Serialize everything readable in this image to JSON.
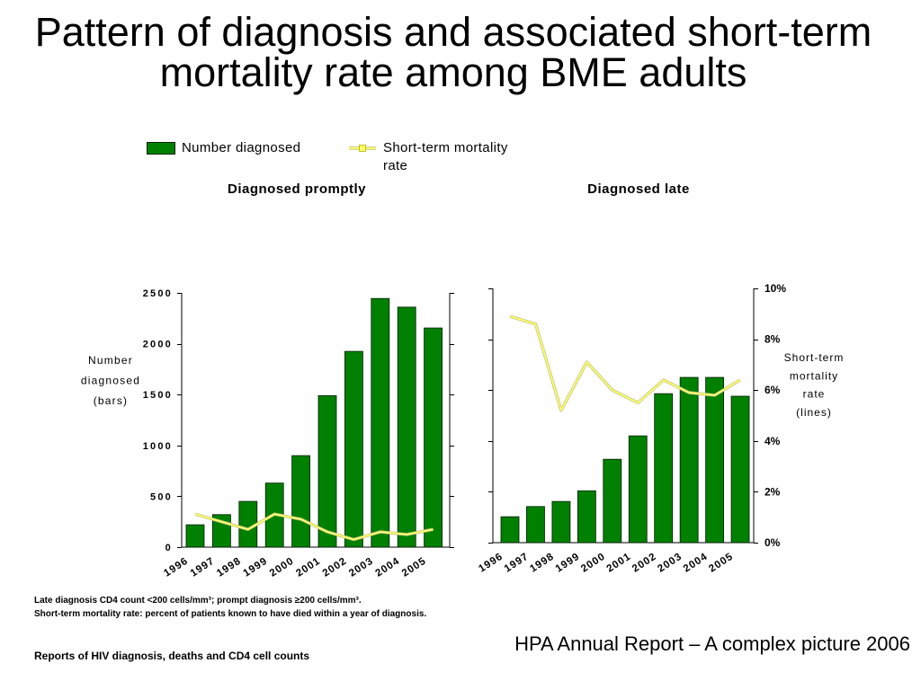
{
  "slide": {
    "title_lines": [
      "Pattern of diagnosis and associated short-term",
      "mortality rate among BME adults"
    ],
    "footnotes": [
      "Late diagnosis CD4 count <200 cells/mm³; prompt diagnosis ≥200 cells/mm³.",
      "Short-term mortality rate: percent of patients known to have died within a year of diagnosis."
    ],
    "source": "Reports of HIV diagnosis, deaths and CD4 cell counts",
    "caption": "HPA Annual Report – A complex picture 2006"
  },
  "chart_data": [
    {
      "type": "bar",
      "title": "Diagnosed promptly",
      "categories": [
        "1996",
        "1997",
        "1998",
        "1999",
        "2000",
        "2001",
        "2002",
        "2003",
        "2004",
        "2005"
      ],
      "series": [
        {
          "name": "Number diagnosed",
          "type": "bar",
          "axis": "left",
          "color": "#008000",
          "values": [
            220,
            320,
            450,
            630,
            900,
            1490,
            1925,
            2445,
            2360,
            2155
          ]
        },
        {
          "name": "Short-term mortality rate",
          "type": "line",
          "axis": "right",
          "color": "#ffff66",
          "values": [
            1.3,
            1.0,
            0.7,
            1.3,
            1.1,
            0.6,
            0.3,
            0.6,
            0.5,
            0.7
          ]
        }
      ],
      "ylabel": "Number diagnosed (bars)",
      "ylim": [
        0,
        2500
      ],
      "yticks": [
        0,
        500,
        1000,
        1500,
        2000,
        2500
      ],
      "ytick_labels": [
        "0",
        "500",
        "1000",
        "1500",
        "2000",
        "2500"
      ],
      "y2lim": [
        0,
        10
      ],
      "y2ticks": [
        0,
        2,
        4,
        6,
        8,
        10
      ],
      "grid": false
    },
    {
      "type": "bar",
      "title": "Diagnosed late",
      "categories": [
        "1996",
        "1997",
        "1998",
        "1999",
        "2000",
        "2001",
        "2002",
        "2003",
        "2004",
        "2005"
      ],
      "series": [
        {
          "name": "Number diagnosed",
          "type": "bar",
          "axis": "left",
          "color": "#008000",
          "values": [
            255,
            355,
            405,
            510,
            820,
            1050,
            1465,
            1625,
            1625,
            1440
          ]
        },
        {
          "name": "Short-term mortality rate",
          "type": "line",
          "axis": "right",
          "color": "#ffff66",
          "values": [
            8.9,
            8.6,
            5.2,
            7.1,
            6.0,
            5.5,
            6.4,
            5.9,
            5.8,
            6.4
          ]
        }
      ],
      "ylim": [
        0,
        2500
      ],
      "yticks": [
        0,
        500,
        1000,
        1500,
        2000,
        2500
      ],
      "y2label": "Short-term mortality rate (lines)",
      "y2lim": [
        0,
        10
      ],
      "y2ticks": [
        0,
        2,
        4,
        6,
        8,
        10
      ],
      "y2tick_labels": [
        "0%",
        "2%",
        "4%",
        "6%",
        "8%",
        "10%"
      ],
      "grid": false
    }
  ]
}
